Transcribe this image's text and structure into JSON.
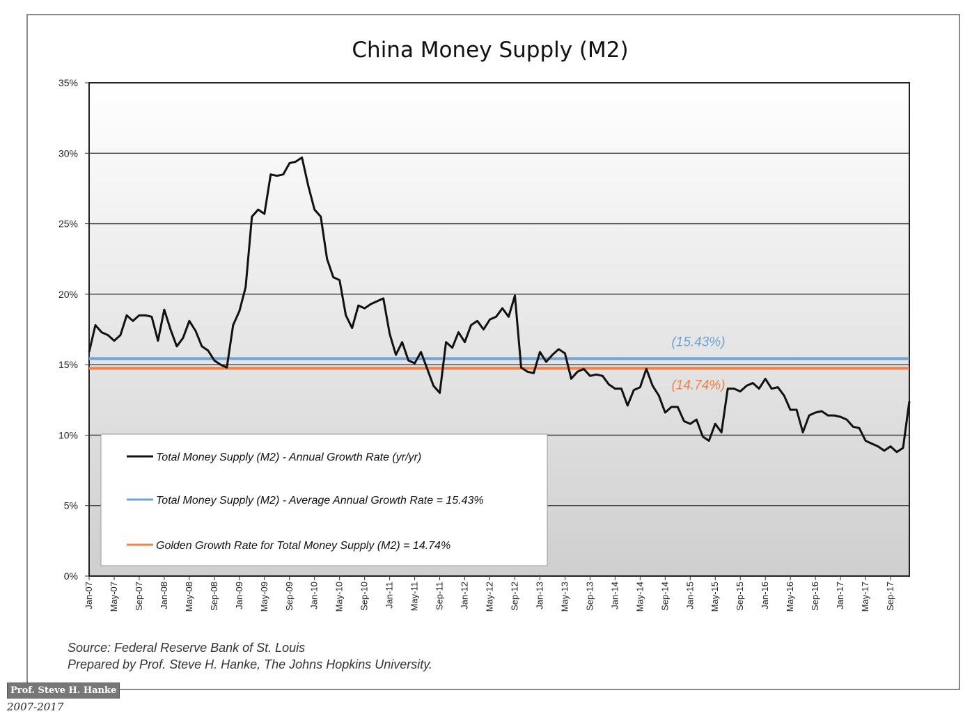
{
  "chart_data": {
    "type": "line",
    "title": "China Money Supply (M2)",
    "ylim": [
      0,
      35
    ],
    "y_ticks": [
      "0%",
      "5%",
      "10%",
      "15%",
      "20%",
      "25%",
      "30%",
      "35%"
    ],
    "x_tick_labels": [
      "Jan-07",
      "May-07",
      "Sep-07",
      "Jan-08",
      "May-08",
      "Sep-08",
      "Jan-09",
      "May-09",
      "Sep-09",
      "Jan-10",
      "May-10",
      "Sep-10",
      "Jan-11",
      "May-11",
      "Sep-11",
      "Jan-12",
      "May-12",
      "Sep-12",
      "Jan-13",
      "May-13",
      "Sep-13",
      "Jan-14",
      "May-14",
      "Sep-14",
      "Jan-15",
      "May-15",
      "Sep-15",
      "Jan-16",
      "May-16",
      "Sep-16",
      "Jan-17",
      "May-17",
      "Sep-17"
    ],
    "grid": true,
    "legend_position": "bottom-left",
    "series": [
      {
        "name": "Total Money Supply (M2) - Annual Growth Rate (yr/yr)",
        "color": "#111111",
        "x": [
          "2007-01",
          "2007-02",
          "2007-03",
          "2007-04",
          "2007-05",
          "2007-06",
          "2007-07",
          "2007-08",
          "2007-09",
          "2007-10",
          "2007-11",
          "2007-12",
          "2008-01",
          "2008-02",
          "2008-03",
          "2008-04",
          "2008-05",
          "2008-06",
          "2008-07",
          "2008-08",
          "2008-09",
          "2008-10",
          "2008-11",
          "2008-12",
          "2009-01",
          "2009-02",
          "2009-03",
          "2009-04",
          "2009-05",
          "2009-06",
          "2009-07",
          "2009-08",
          "2009-09",
          "2009-10",
          "2009-11",
          "2009-12",
          "2010-01",
          "2010-02",
          "2010-03",
          "2010-04",
          "2010-05",
          "2010-06",
          "2010-07",
          "2010-08",
          "2010-09",
          "2010-10",
          "2010-11",
          "2010-12",
          "2011-01",
          "2011-02",
          "2011-03",
          "2011-04",
          "2011-05",
          "2011-06",
          "2011-07",
          "2011-08",
          "2011-09",
          "2011-10",
          "2011-11",
          "2011-12",
          "2012-01",
          "2012-02",
          "2012-03",
          "2012-04",
          "2012-05",
          "2012-06",
          "2012-07",
          "2012-08",
          "2012-09",
          "2012-10",
          "2012-11",
          "2012-12",
          "2013-01",
          "2013-02",
          "2013-03",
          "2013-04",
          "2013-05",
          "2013-06",
          "2013-07",
          "2013-08",
          "2013-09",
          "2013-10",
          "2013-11",
          "2013-12",
          "2014-01",
          "2014-02",
          "2014-03",
          "2014-04",
          "2014-05",
          "2014-06",
          "2014-07",
          "2014-08",
          "2014-09",
          "2014-10",
          "2014-11",
          "2014-12",
          "2015-01",
          "2015-02",
          "2015-03",
          "2015-04",
          "2015-05",
          "2015-06",
          "2015-07",
          "2015-08",
          "2015-09",
          "2015-10",
          "2015-11",
          "2015-12",
          "2016-01",
          "2016-02",
          "2016-03",
          "2016-04",
          "2016-05",
          "2016-06",
          "2016-07",
          "2016-08",
          "2016-09",
          "2016-10",
          "2016-11",
          "2016-12",
          "2017-01",
          "2017-02",
          "2017-03",
          "2017-04",
          "2017-05",
          "2017-06",
          "2017-07",
          "2017-08",
          "2017-09",
          "2017-10",
          "2017-11",
          "2017-12"
        ],
        "values": [
          15.9,
          17.8,
          17.3,
          17.1,
          16.7,
          17.1,
          18.5,
          18.1,
          18.5,
          18.5,
          18.4,
          16.7,
          18.9,
          17.5,
          16.3,
          16.9,
          18.1,
          17.4,
          16.3,
          16.0,
          15.3,
          15.0,
          14.8,
          17.8,
          18.8,
          20.5,
          25.5,
          26.0,
          25.7,
          28.5,
          28.4,
          28.5,
          29.3,
          29.4,
          29.7,
          27.7,
          26.0,
          25.5,
          22.5,
          21.2,
          21.0,
          18.5,
          17.6,
          19.2,
          19.0,
          19.3,
          19.5,
          19.7,
          17.2,
          15.7,
          16.6,
          15.3,
          15.1,
          15.9,
          14.7,
          13.5,
          13.0,
          16.6,
          16.2,
          17.3,
          16.6,
          17.8,
          18.1,
          17.5,
          18.2,
          18.4,
          19.0,
          18.4,
          19.9,
          14.8,
          14.5,
          14.4,
          15.9,
          15.2,
          15.7,
          16.1,
          15.8,
          14.0,
          14.5,
          14.7,
          14.2,
          14.3,
          14.2,
          13.6,
          13.3,
          13.3,
          12.1,
          13.2,
          13.4,
          14.7,
          13.5,
          12.8,
          11.6,
          12.0,
          12.0,
          11.0,
          10.8,
          11.1,
          9.9,
          9.6,
          10.8,
          10.2,
          13.3,
          13.3,
          13.1,
          13.5,
          13.7,
          13.3,
          14.0,
          13.3,
          13.4,
          12.8,
          11.8,
          11.8,
          10.2,
          11.4,
          11.6,
          11.7,
          11.4,
          11.4,
          11.3,
          11.1,
          10.6,
          10.5,
          9.6,
          9.4,
          9.2,
          8.9,
          9.2,
          8.8,
          9.1,
          12.4
        ]
      },
      {
        "name": "Total Money Supply (M2) - Average Annual Growth Rate = 15.43%",
        "color": "#6fa3d8",
        "constant": 15.43,
        "label": "(15.43%)"
      },
      {
        "name": "Golden Growth Rate for Total Money Supply (M2) = 14.74%",
        "color": "#f0814a",
        "constant": 14.74,
        "label": "(14.74%)"
      }
    ]
  },
  "source_line": "Source: Federal Reserve Bank of St. Louis",
  "prepared_line": "Prepared by Prof. Steve H. Hanke, The Johns Hopkins University.",
  "watermark": "Prof. Steve H. Hanke",
  "date_range": "2007-2017"
}
